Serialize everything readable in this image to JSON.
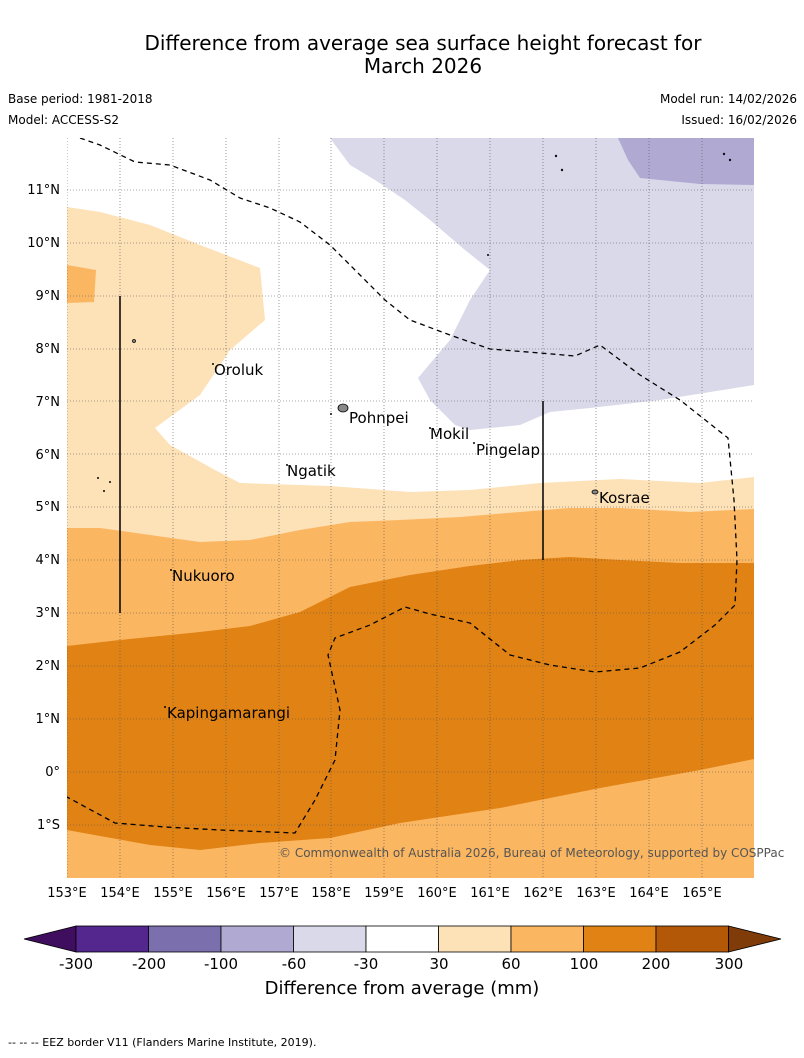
{
  "header": {
    "title_line1": "Difference from average sea surface height forecast for",
    "title_line2": "March 2026",
    "base_period": "Base period: 1981-2018",
    "model": "Model: ACCESS-S2",
    "model_run": "Model run: 14/02/2026",
    "issued": "Issued: 16/02/2026"
  },
  "map": {
    "lat_labels": [
      "11°N",
      "10°N",
      "9°N",
      "8°N",
      "7°N",
      "6°N",
      "5°N",
      "4°N",
      "3°N",
      "2°N",
      "1°N",
      "0°",
      "1°S"
    ],
    "lon_labels": [
      "153°E",
      "154°E",
      "155°E",
      "156°E",
      "157°E",
      "158°E",
      "159°E",
      "160°E",
      "161°E",
      "162°E",
      "163°E",
      "164°E",
      "165°E"
    ],
    "places": [
      "Oroluk",
      "Pohnpei",
      "Mokil",
      "Pingelap",
      "Ngatik",
      "Kosrae",
      "Nukuoro",
      "Kapingamarangi"
    ],
    "copyright": "© Commonwealth of Australia 2026, Bureau of Meteorology, supported by COSPPac"
  },
  "colorbar": {
    "ticks": [
      "-300",
      "-200",
      "-100",
      "-60",
      "-30",
      "30",
      "60",
      "100",
      "200",
      "300"
    ],
    "label": "Difference from average (mm)",
    "colors": [
      "#3f0e5e",
      "#54278f",
      "#7b6fae",
      "#b0a9d2",
      "#d9d9ea",
      "#ffffff",
      "#fde1b7",
      "#fbb661",
      "#e08214",
      "#b35806",
      "#7f3b08"
    ]
  },
  "footnote": "-- -- -- EEZ border V11 (Flanders Marine Institute, 2019)."
}
